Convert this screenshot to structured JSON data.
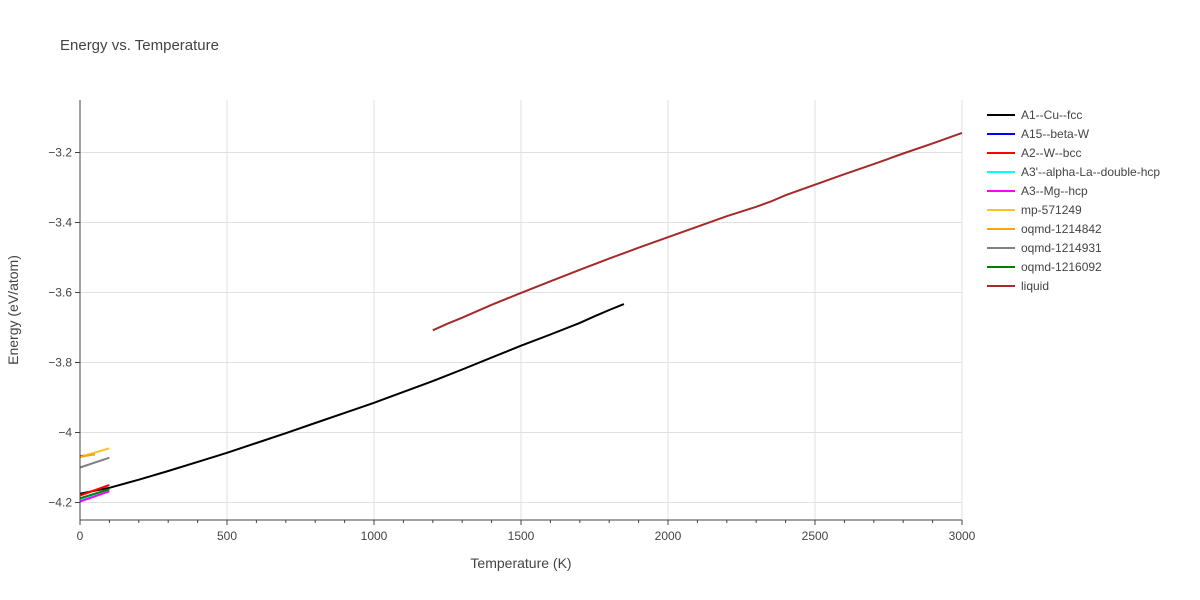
{
  "chart_data": {
    "type": "line",
    "title": "Energy vs. Temperature",
    "xlabel": "Temperature (K)",
    "ylabel": "Energy (eV/atom)",
    "xlim": [
      0,
      3000
    ],
    "ylim": [
      -4.25,
      -3.05
    ],
    "xticks": [
      0,
      500,
      1000,
      1500,
      2000,
      2500,
      3000
    ],
    "xtick_labels": [
      "0",
      "500",
      "1000",
      "1500",
      "2000",
      "2500",
      "3000"
    ],
    "yticks": [
      -4.2,
      -4.0,
      -3.8,
      -3.6,
      -3.4,
      -3.2
    ],
    "ytick_labels": [
      "−4.2",
      "−4",
      "−3.8",
      "−3.6",
      "−3.4",
      "−3.2"
    ],
    "grid": true,
    "legend_position": "right",
    "series": [
      {
        "name": "A1--Cu--fcc",
        "color": "#000000",
        "x": [
          0,
          100,
          200,
          300,
          400,
          500,
          600,
          700,
          800,
          900,
          1000,
          1100,
          1200,
          1300,
          1400,
          1500,
          1600,
          1700,
          1750,
          1800,
          1850
        ],
        "y": [
          -4.175,
          -4.158,
          -4.135,
          -4.11,
          -4.084,
          -4.058,
          -4.03,
          -4.002,
          -3.973,
          -3.944,
          -3.915,
          -3.884,
          -3.853,
          -3.82,
          -3.786,
          -3.752,
          -3.72,
          -3.687,
          -3.668,
          -3.65,
          -3.633
        ]
      },
      {
        "name": "A15--beta-W",
        "color": "#0000ff",
        "x": [
          0,
          50
        ],
        "y": [
          -4.068,
          -4.062
        ]
      },
      {
        "name": "A2--W--bcc",
        "color": "#ff0000",
        "x": [
          0,
          100
        ],
        "y": [
          -4.18,
          -4.15
        ]
      },
      {
        "name": "A3'--alpha-La--double-hcp",
        "color": "#00ffff",
        "x": [
          0,
          100
        ],
        "y": [
          -4.193,
          -4.167
        ]
      },
      {
        "name": "A3--Mg--hcp",
        "color": "#ff00ff",
        "x": [
          0,
          100
        ],
        "y": [
          -4.197,
          -4.168
        ]
      },
      {
        "name": "mp-571249",
        "color": "#ffc125",
        "x": [
          0,
          100
        ],
        "y": [
          -4.07,
          -4.045
        ]
      },
      {
        "name": "oqmd-1214842",
        "color": "#ffa500",
        "x": [
          0,
          50
        ],
        "y": [
          -4.07,
          -4.062
        ]
      },
      {
        "name": "oqmd-1214931",
        "color": "#808080",
        "x": [
          0,
          100
        ],
        "y": [
          -4.1,
          -4.072
        ]
      },
      {
        "name": "oqmd-1216092",
        "color": "#008000",
        "x": [
          0,
          100
        ],
        "y": [
          -4.188,
          -4.162
        ]
      },
      {
        "name": "liquid",
        "color": "#a52a2a",
        "x": [
          1200,
          1250,
          1300,
          1400,
          1500,
          1600,
          1700,
          1800,
          1900,
          2000,
          2100,
          2200,
          2300,
          2350,
          2400,
          2500,
          2600,
          2700,
          2800,
          2900,
          3000
        ],
        "y": [
          -3.708,
          -3.689,
          -3.672,
          -3.635,
          -3.601,
          -3.568,
          -3.535,
          -3.503,
          -3.472,
          -3.442,
          -3.412,
          -3.382,
          -3.355,
          -3.34,
          -3.322,
          -3.292,
          -3.262,
          -3.233,
          -3.203,
          -3.174,
          -3.144
        ]
      }
    ]
  }
}
